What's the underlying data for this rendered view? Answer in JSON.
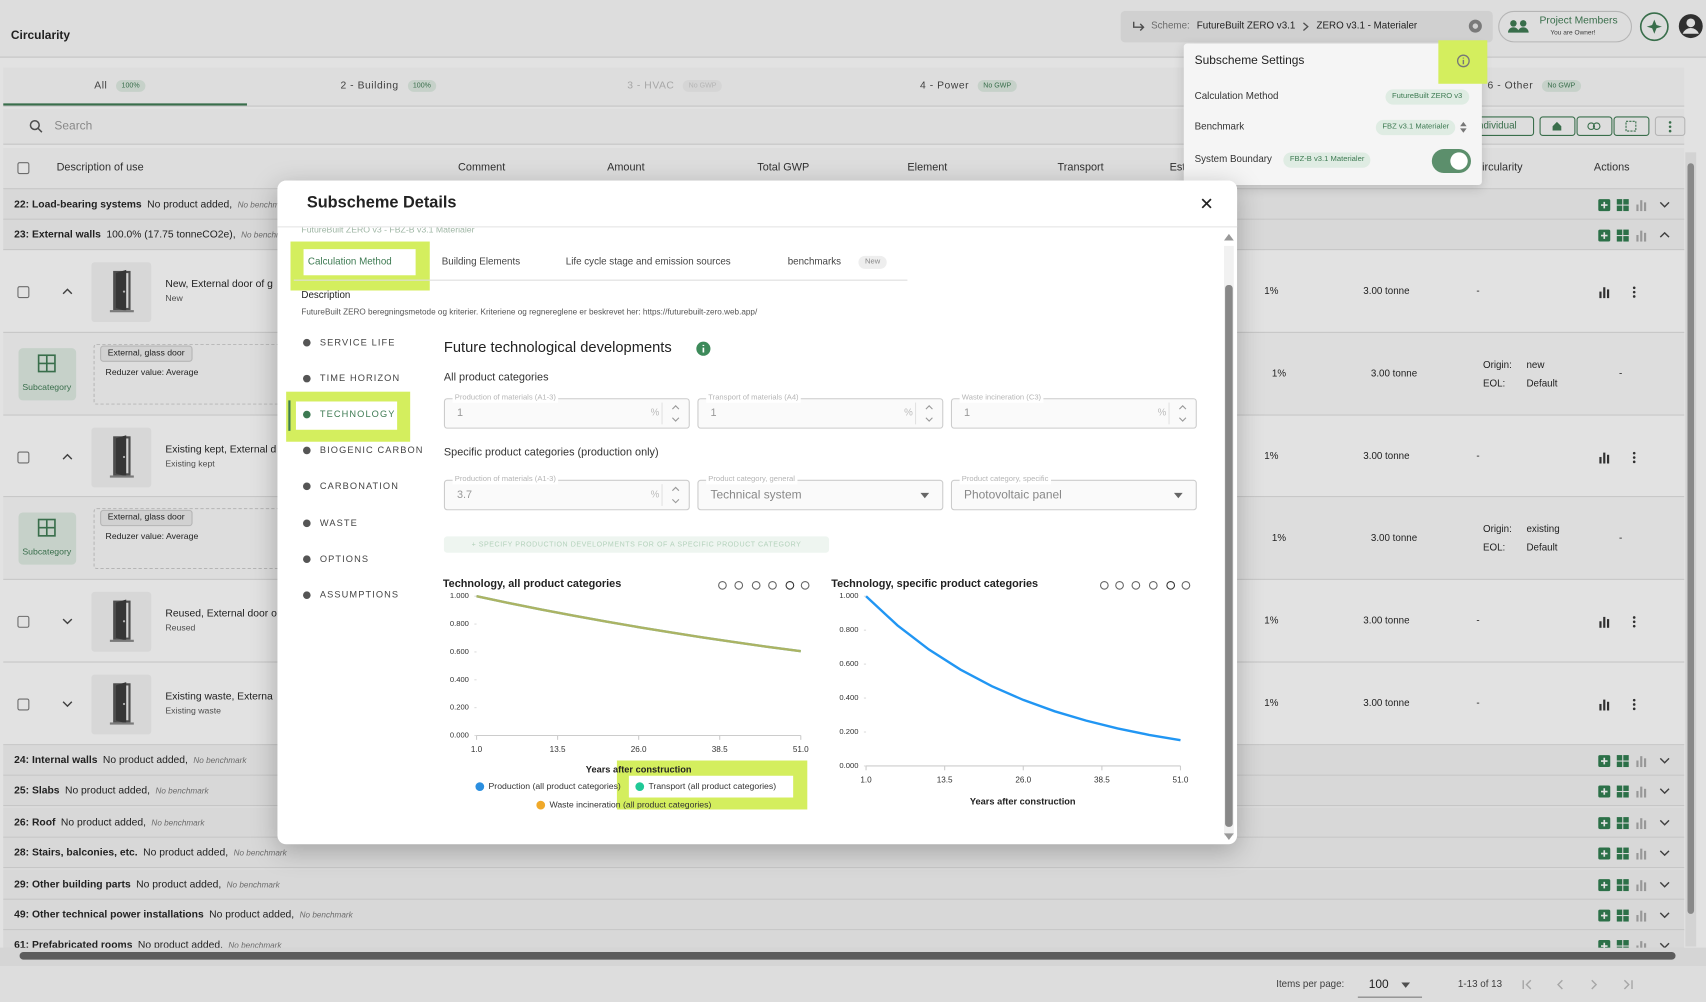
{
  "header": {
    "title": "Circularity",
    "scheme_label": "Scheme:",
    "scheme": "FutureBuilt ZERO v3.1",
    "subscheme": "ZERO v3.1 - Materialer",
    "members": "Project Members",
    "members_note": "You are Owner!"
  },
  "tabs": [
    {
      "label": "All",
      "badge": "100%"
    },
    {
      "label": "2 - Building",
      "badge": "100%"
    },
    {
      "label": "3 - HVAC",
      "badge": "No GWP"
    },
    {
      "label": "4 - Power",
      "badge": "No GWP"
    },
    {
      "label": "6 - Other",
      "badge": "No GWP"
    }
  ],
  "search": "Search",
  "toolbar": {
    "individual": "Individual"
  },
  "columns": [
    "Description of use",
    "Comment",
    "Amount",
    "Total GWP",
    "Element",
    "Transport",
    "Est",
    "Circularity",
    "Actions"
  ],
  "groups_top": [
    {
      "title": "22: Load-bearing systems",
      "info": "No product added,",
      "benchmark": "No benchmark"
    },
    {
      "title": "23: External walls",
      "info": "100.0% (17.75 tonneCO2e),",
      "benchmark": "No benchmark"
    }
  ],
  "products": [
    {
      "name": "New, External door of g",
      "status": "New",
      "amount": "1%",
      "mass": "3.00 tonne",
      "circularity": "-",
      "subcategory": {
        "tag": "External, glass door",
        "reduzer": "Reduzer value: Average",
        "badge": "Subcategory",
        "amount": "1%",
        "mass": "3.00 tonne",
        "origin_label": "Origin:",
        "origin": "new",
        "eol_label": "EOL:",
        "eol": "Default",
        "circularity": "-"
      }
    },
    {
      "name": "Existing kept, External d",
      "status": "Existing kept",
      "amount": "1%",
      "mass": "3.00 tonne",
      "circularity": "-",
      "subcategory": {
        "tag": "External, glass door",
        "reduzer": "Reduzer value: Average",
        "badge": "Subcategory",
        "amount": "1%",
        "mass": "3.00 tonne",
        "origin_label": "Origin:",
        "origin": "existing",
        "eol_label": "EOL:",
        "eol": "Default",
        "circularity": "-"
      }
    },
    {
      "name": "Reused, External door o",
      "status": "Reused",
      "amount": "1%",
      "mass": "3.00 tonne",
      "circularity": "-"
    },
    {
      "name": "Existing waste, Externa",
      "status": "Existing waste",
      "amount": "1%",
      "mass": "3.00 tonne",
      "circularity": "-"
    }
  ],
  "groups_bottom": [
    {
      "title": "24: Internal walls",
      "info": "No product added,",
      "benchmark": "No benchmark"
    },
    {
      "title": "25: Slabs",
      "info": "No product added,",
      "benchmark": "No benchmark"
    },
    {
      "title": "26: Roof",
      "info": "No product added,",
      "benchmark": "No benchmark"
    },
    {
      "title": "28: Stairs, balconies, etc.",
      "info": "No product added,",
      "benchmark": "No benchmark"
    },
    {
      "title": "29: Other building parts",
      "info": "No product added,",
      "benchmark": "No benchmark"
    },
    {
      "title": "49: Other technical power installations",
      "info": "No product added,",
      "benchmark": "No benchmark"
    },
    {
      "title": "61: Prefabricated rooms",
      "info": "No product added,",
      "benchmark": "No benchmark"
    }
  ],
  "footer": {
    "items_label": "Items per page:",
    "page_size": "100",
    "range": "1-13 of 13"
  },
  "settings": {
    "title": "Subscheme Settings",
    "rows": [
      {
        "label": "Calculation Method",
        "value": "FutureBuilt ZERO v3"
      },
      {
        "label": "Benchmark",
        "value": "FBZ v3.1 Materialer"
      },
      {
        "label": "System Boundary",
        "value": "FBZ-B v3.1 Materialer"
      }
    ]
  },
  "modal": {
    "title": "Subscheme Details",
    "subtitle": "FutureBuilt ZERO v3 - FBZ-B v3.1 Materialer",
    "tabs": [
      "Calculation Method",
      "Building Elements",
      "Life cycle stage and emission sources",
      "benchmarks"
    ],
    "tab_badge": "New",
    "description_label": "Description",
    "description": "FutureBuilt ZERO beregningsmetode og kriterier. Kriteriene og regnereglene er beskrevet her: https://futurebuilt-zero.web.app/",
    "nav": [
      "SERVICE LIFE",
      "TIME HORIZON",
      "TECHNOLOGY",
      "BIOGENIC CARBON",
      "CARBONATION",
      "WASTE",
      "OPTIONS",
      "ASSUMPTIONS"
    ],
    "heading": "Future technological developments",
    "all_label": "All product categories",
    "all_fields": [
      {
        "label": "Production of materials (A1-3)",
        "value": 1,
        "unit": "%"
      },
      {
        "label": "Transport of materials (A4)",
        "value": 1,
        "unit": "%"
      },
      {
        "label": "Waste incineration (C3)",
        "value": 1,
        "unit": "%"
      }
    ],
    "specific_label": "Specific product categories (production only)",
    "specific_fields": [
      {
        "label": "Production of materials (A1-3)",
        "value": 3.7,
        "unit": "%"
      },
      {
        "label": "Product category, general",
        "value": "Technical system"
      },
      {
        "label": "Product category, specific",
        "value": "Photovoltaic panel"
      }
    ],
    "add_button": "+ SPECIFY PRODUCTION DEVELOPMENTS FOR OF A SPECIFIC PRODUCT CATEGORY",
    "charts": [
      {
        "type": "line",
        "title": "Technology, all product categories",
        "x": [
          1,
          6,
          11,
          16,
          21,
          26,
          31,
          36,
          41,
          46,
          51
        ],
        "xlim": [
          1,
          51
        ],
        "xticks": [
          {
            "value": 1,
            "label": "1.0"
          },
          13.5,
          {
            "value": 26,
            "label": "26.0"
          },
          38.5,
          {
            "value": 51,
            "label": "51.0"
          }
        ],
        "ylim": [
          0,
          1
        ],
        "yticks": [
          {
            "value": 0,
            "label": "0.000"
          },
          {
            "value": 0.2,
            "label": "0.200"
          },
          {
            "value": 0.4,
            "label": "0.400"
          },
          {
            "value": 0.6,
            "label": "0.600"
          },
          {
            "value": 0.8,
            "label": "0.800"
          },
          {
            "value": 1,
            "label": "1.000"
          }
        ],
        "xlabel": "Years after construction",
        "series": [
          {
            "name": "Production (all product categories)",
            "color": "#2b8fe0",
            "values": [
              1,
              0.951,
              0.904,
              0.86,
              0.818,
              0.778,
              0.74,
              0.703,
              0.669,
              0.636,
              0.605
            ]
          },
          {
            "name": "Transport (all product categories)",
            "color": "#20c997",
            "values": [
              1,
              0.951,
              0.904,
              0.86,
              0.818,
              0.778,
              0.74,
              0.703,
              0.669,
              0.636,
              0.605
            ]
          },
          {
            "name": "Waste incineration (all product categories)",
            "color": "#f0a92a",
            "values": [
              1,
              0.951,
              0.904,
              0.86,
              0.818,
              0.778,
              0.74,
              0.703,
              0.669,
              0.636,
              0.605
            ]
          }
        ]
      },
      {
        "type": "line",
        "title": "Technology, specific product categories",
        "x": [
          1,
          6,
          11,
          16,
          21,
          26,
          31,
          36,
          41,
          46,
          51
        ],
        "xlim": [
          1,
          51
        ],
        "xticks": [
          {
            "value": 1,
            "label": "1.0"
          },
          13.5,
          {
            "value": 26,
            "label": "26.0"
          },
          38.5,
          {
            "value": 51,
            "label": "51.0"
          }
        ],
        "ylim": [
          0,
          1
        ],
        "yticks": [
          {
            "value": 0,
            "label": "0.000"
          },
          {
            "value": 0.2,
            "label": "0.200"
          },
          {
            "value": 0.4,
            "label": "0.400"
          },
          {
            "value": 0.6,
            "label": "0.600"
          },
          {
            "value": 0.8,
            "label": "0.800"
          },
          {
            "value": 1,
            "label": "1.000"
          }
        ],
        "xlabel": "Years after construction",
        "series": [
          {
            "color": "#2196f3",
            "values": [
              1,
              0.828,
              0.686,
              0.568,
              0.47,
              0.389,
              0.322,
              0.267,
              0.221,
              0.183,
              0.152
            ]
          }
        ]
      }
    ]
  }
}
